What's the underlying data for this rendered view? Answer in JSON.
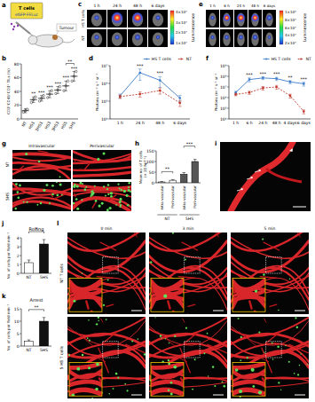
{
  "figure": {
    "panel_labels": [
      "a",
      "b",
      "c",
      "d",
      "e",
      "f",
      "g",
      "h",
      "i",
      "j",
      "k",
      "l"
    ],
    "schematic": {
      "cells": "T cells",
      "reporter": "eGFP-FFLuc",
      "tumour": "Tumour"
    },
    "imaging_c": {
      "times": [
        "1 h",
        "24 h",
        "48 h",
        "6 days"
      ],
      "rows": [
        "HS T cells",
        "NT"
      ],
      "colorbar_ticks": [
        "4×10⁷",
        "3×10⁷",
        "2×10⁷",
        "1×10⁷"
      ],
      "colorbar_label": "Luminescence"
    },
    "imaging_e": {
      "times": [
        "1 h",
        "6 h",
        "24 h",
        "48 h",
        "6 days"
      ],
      "colorbar_ticks": [
        "1×10⁸",
        "8×10⁷",
        "6×10⁷",
        "4×10⁷",
        "2×10⁷"
      ],
      "colorbar_label": "Luminescence"
    },
    "microscopy_g": {
      "columns": [
        "Intravascular",
        "Perivascular"
      ],
      "rows": [
        "NT",
        "5HS"
      ]
    },
    "timelapse_l": {
      "times": [
        "0 min",
        "3 min",
        "5 min"
      ],
      "rows": [
        "NT T cells",
        "5 HS T cells"
      ]
    }
  },
  "chart_data": [
    {
      "type": "dot",
      "categories": [
        "NT",
        "HS1",
        "3HS1",
        "HS3",
        "3HS3",
        "HS5",
        "5HS"
      ],
      "values": [
        12,
        28,
        30,
        36,
        42,
        48,
        62
      ],
      "errors": [
        3,
        4,
        4,
        5,
        5,
        7,
        7
      ],
      "points": [
        [
          10,
          12,
          14
        ],
        [
          24,
          28,
          32
        ],
        [
          26,
          30,
          34
        ],
        [
          31,
          36,
          41
        ],
        [
          37,
          42,
          47
        ],
        [
          41,
          48,
          55
        ],
        [
          55,
          62,
          69
        ]
      ],
      "color": "#222222",
      "y_label": "CD3⁺CD45⁺CD3⁺ TILs (%)",
      "ylim": [
        0,
        80
      ],
      "yticks": [
        0,
        20,
        40,
        60,
        80
      ],
      "annotations": [
        {
          "x": 1,
          "text": "**"
        },
        {
          "x": 2,
          "text": "***"
        },
        {
          "x": 3,
          "text": "***"
        },
        {
          "x": 4,
          "text": "***"
        },
        {
          "x": 5,
          "text": "***"
        },
        {
          "x": 6,
          "text": "***"
        },
        {
          "x": 5,
          "x2": 6,
          "text": "**"
        }
      ]
    },
    {
      "type": "line",
      "log": "y",
      "categories": [
        "1 h",
        "24 h",
        "48 h",
        "6 days"
      ],
      "series": [
        {
          "name": "HS T cells",
          "color": "#3d7cc9",
          "line_style": "solid",
          "marker": "circle",
          "values": [
            200000,
            4000000,
            1500000,
            150000
          ],
          "errors": [
            50000,
            2500000,
            900000,
            60000
          ]
        },
        {
          "name": "NT",
          "color": "#c0392b",
          "line_style": "dashed",
          "marker": "circle",
          "values": [
            180000,
            250000,
            400000,
            80000
          ],
          "errors": [
            40000,
            80000,
            150000,
            30000
          ]
        }
      ],
      "y_label": "Photons cm⁻² s⁻¹ sr⁻¹",
      "ylim": [
        10000,
        10000000
      ],
      "yticks": [
        {
          "value": 10000,
          "label": "10⁴"
        },
        {
          "value": 100000,
          "label": "10⁵"
        },
        {
          "value": 1000000,
          "label": "10⁶"
        },
        {
          "value": 10000000,
          "label": "10⁷"
        }
      ],
      "legend": "top",
      "annotations": [
        {
          "x": 1,
          "text": "***"
        },
        {
          "x": 2,
          "text": "***"
        }
      ]
    },
    {
      "type": "line",
      "log": "y",
      "categories": [
        "1 h",
        "6 h",
        "24 h",
        "48 h",
        "4 days",
        "6 days"
      ],
      "series": [
        {
          "name": "HS T cells",
          "color": "#3d7cc9",
          "line_style": "solid",
          "marker": "circle",
          "values": [
            3000000,
            50000000,
            70000000,
            60000000,
            30000000,
            20000000
          ],
          "errors": [
            1000000,
            20000000,
            20000000,
            20000000,
            10000000,
            8000000
          ]
        },
        {
          "name": "NT",
          "color": "#c0392b",
          "line_style": "dashed",
          "marker": "circle",
          "values": [
            2000000,
            3000000,
            8000000,
            10000000,
            1500000,
            50000
          ],
          "errors": [
            500000,
            1000000,
            3000000,
            4000000,
            600000,
            20000
          ]
        }
      ],
      "y_label": "Photons cm⁻² s⁻¹ sr⁻¹",
      "ylim": [
        10000,
        1000000000
      ],
      "yticks": [
        {
          "value": 10000,
          "label": "10⁴"
        },
        {
          "value": 100000,
          "label": "10⁵"
        },
        {
          "value": 1000000,
          "label": "10⁶"
        },
        {
          "value": 10000000,
          "label": "10⁷"
        },
        {
          "value": 100000000,
          "label": "10⁸"
        },
        {
          "value": 1000000000,
          "label": "10⁹"
        }
      ],
      "legend": "top",
      "annotations": [
        {
          "x": 1,
          "text": "***"
        },
        {
          "x": 2,
          "text": "***"
        },
        {
          "x": 3,
          "text": "***"
        },
        {
          "x": 4,
          "text": "**"
        },
        {
          "x": 5,
          "text": "***"
        }
      ]
    },
    {
      "type": "bar",
      "categories": [
        "Intra-vascular",
        "Peri-vascular",
        "Intra-vascular",
        "Peri-vascular"
      ],
      "groups": [
        {
          "label": "NT",
          "members": [
            0,
            1
          ]
        },
        {
          "label": "5HS",
          "members": [
            2,
            3
          ]
        }
      ],
      "values": [
        4,
        12,
        40,
        100
      ],
      "errors": [
        2,
        3,
        8,
        10
      ],
      "colors": [
        "#ffffff",
        "#ffffff",
        "#555555",
        "#555555"
      ],
      "y_label": "Mean no. of T cells (× 20 hpf⁻¹)",
      "ylim": [
        0,
        150
      ],
      "yticks": [
        0,
        50,
        100,
        150
      ],
      "annotations": [
        {
          "x": 0,
          "x2": 1,
          "text": "**"
        },
        {
          "x": 2,
          "x2": 3,
          "text": "***"
        }
      ]
    },
    {
      "type": "bar",
      "title": "Rolling",
      "categories": [
        "NT",
        "5HS"
      ],
      "values": [
        1.2,
        3.3
      ],
      "errors": [
        0.3,
        0.5
      ],
      "colors": [
        "#ffffff",
        "#111111"
      ],
      "y_label": "No. of cells per field min⁻¹",
      "ylim": [
        0,
        4
      ],
      "yticks": [
        0,
        1,
        2,
        3,
        4
      ],
      "annotations": [
        {
          "x": 0,
          "x2": 1,
          "text": "*"
        }
      ]
    },
    {
      "type": "bar",
      "title": "Arrest",
      "categories": [
        "NT",
        "5HS"
      ],
      "values": [
        2,
        10
      ],
      "errors": [
        0.5,
        1.5
      ],
      "colors": [
        "#ffffff",
        "#111111"
      ],
      "y_label": "No. of cells per field min⁻¹",
      "ylim": [
        0,
        15
      ],
      "yticks": [
        0,
        5,
        10,
        15
      ],
      "annotations": [
        {
          "x": 0,
          "x2": 1,
          "text": "**"
        }
      ]
    }
  ]
}
